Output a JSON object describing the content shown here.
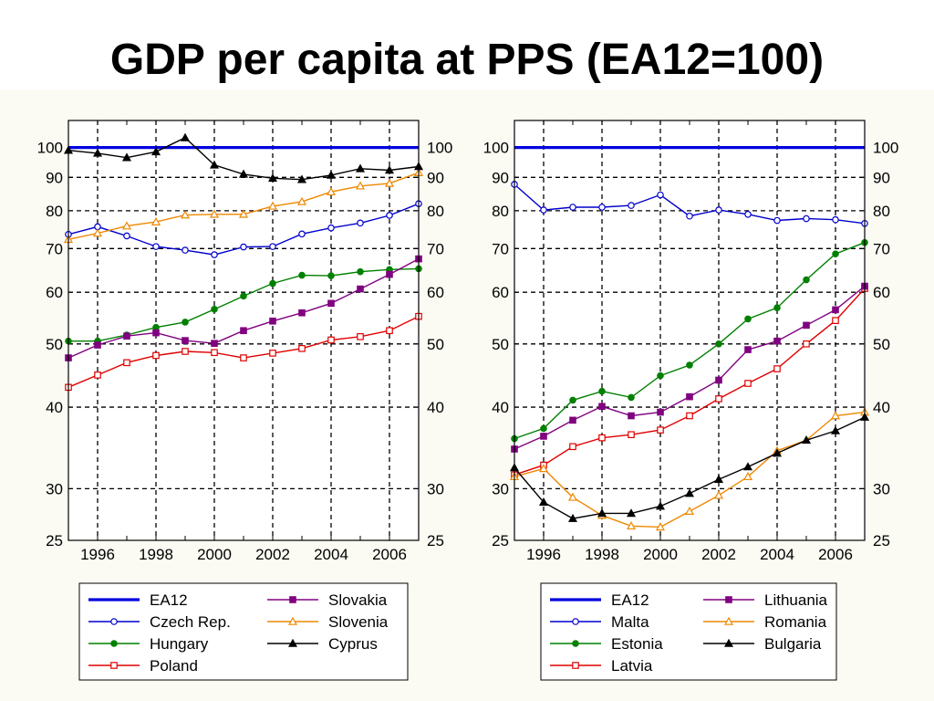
{
  "title": "GDP per capita at PPS (EA12=100)",
  "chart_data": [
    {
      "type": "line",
      "title": "",
      "xlabel": "",
      "ylabel": "",
      "yscale": "log",
      "xlim": [
        1995,
        2007
      ],
      "ylim": [
        25,
        110
      ],
      "x": [
        1995,
        1996,
        1997,
        1998,
        1999,
        2000,
        2001,
        2002,
        2003,
        2004,
        2005,
        2006,
        2007
      ],
      "x_ticks": [
        "1996",
        "1998",
        "2000",
        "2002",
        "2004",
        "2006"
      ],
      "y_ticks": [
        "25",
        "30",
        "40",
        "50",
        "60",
        "70",
        "80",
        "90",
        "100"
      ],
      "grid": true,
      "legend_position": "below",
      "series": [
        {
          "name": "EA12",
          "color": "#0000e0",
          "marker": "none",
          "values": [
            100,
            100,
            100,
            100,
            100,
            100,
            100,
            100,
            100,
            100,
            100,
            100,
            100
          ]
        },
        {
          "name": "Czech Rep.",
          "color": "#0000cc",
          "marker": "circle-open",
          "values": [
            73.6,
            75.6,
            73.2,
            70.5,
            69.6,
            68.5,
            70.4,
            70.5,
            73.7,
            75.3,
            76.6,
            78.7,
            82
          ]
        },
        {
          "name": "Hungary",
          "color": "#008000",
          "marker": "circle-filled",
          "values": [
            50.5,
            50.5,
            51.6,
            53,
            54,
            56.5,
            59.2,
            61.9,
            63.7,
            63.6,
            64.5,
            65,
            65.2
          ]
        },
        {
          "name": "Poland",
          "color": "#e00000",
          "marker": "square-open",
          "values": [
            42.9,
            44.8,
            46.8,
            48,
            48.7,
            48.5,
            47.6,
            48.4,
            49.2,
            50.7,
            51.3,
            52.4,
            55.1
          ]
        },
        {
          "name": "Slovakia",
          "color": "#800080",
          "marker": "square-filled",
          "values": [
            47.6,
            49.8,
            51.4,
            52,
            50.6,
            50.1,
            52.4,
            54.2,
            55.8,
            57.7,
            60.7,
            63.9,
            67.5
          ]
        },
        {
          "name": "Slovenia",
          "color": "#ee8800",
          "marker": "triangle-open",
          "values": [
            72.3,
            73.9,
            75.8,
            76.9,
            78.8,
            79,
            79,
            81.3,
            82.6,
            85.5,
            87.3,
            88.1,
            91.5
          ]
        },
        {
          "name": "Cyprus",
          "color": "#000000",
          "marker": "triangle-filled",
          "values": [
            99,
            98,
            96.5,
            98.5,
            103.5,
            94,
            91,
            89.7,
            89.3,
            90.7,
            92.8,
            92.3,
            93.5
          ]
        }
      ]
    },
    {
      "type": "line",
      "title": "",
      "xlabel": "",
      "ylabel": "",
      "yscale": "log",
      "xlim": [
        1995,
        2007
      ],
      "ylim": [
        25,
        110
      ],
      "x": [
        1995,
        1996,
        1997,
        1998,
        1999,
        2000,
        2001,
        2002,
        2003,
        2004,
        2005,
        2006,
        2007
      ],
      "x_ticks": [
        "1996",
        "1998",
        "2000",
        "2002",
        "2004",
        "2006"
      ],
      "y_ticks": [
        "25",
        "30",
        "40",
        "50",
        "60",
        "70",
        "80",
        "90",
        "100"
      ],
      "grid": true,
      "legend_position": "below",
      "series": [
        {
          "name": "EA12",
          "color": "#0000e0",
          "marker": "none",
          "values": [
            100,
            100,
            100,
            100,
            100,
            100,
            100,
            100,
            100,
            100,
            100,
            100,
            100
          ]
        },
        {
          "name": "Malta",
          "color": "#0000cc",
          "marker": "circle-open",
          "values": [
            87.8,
            80.2,
            81,
            81,
            81.5,
            84.6,
            78.5,
            80.2,
            79,
            77.3,
            77.8,
            77.5,
            76.5
          ]
        },
        {
          "name": "Estonia",
          "color": "#008000",
          "marker": "circle-filled",
          "values": [
            35.8,
            37.1,
            41,
            42.3,
            41.4,
            44.7,
            46.4,
            50,
            54.6,
            56.8,
            62.7,
            68.7,
            71.5
          ]
        },
        {
          "name": "Latvia",
          "color": "#e00000",
          "marker": "square-open",
          "values": [
            31.5,
            32.6,
            34.8,
            35.9,
            36.3,
            36.9,
            38.8,
            41.2,
            43.5,
            45.8,
            50,
            54.3,
            60.8
          ]
        },
        {
          "name": "Lithuania",
          "color": "#800080",
          "marker": "square-filled",
          "values": [
            34.5,
            36.1,
            38.2,
            40.1,
            38.8,
            39.3,
            41.5,
            44,
            49,
            50.5,
            53.4,
            56.4,
            61.3
          ]
        },
        {
          "name": "Romania",
          "color": "#ee8800",
          "marker": "triangle-open",
          "values": [
            31.3,
            32.2,
            29.1,
            27.3,
            26.3,
            26.2,
            27.7,
            29.3,
            31.3,
            34.3,
            35.6,
            38.8,
            39.3
          ]
        },
        {
          "name": "Bulgaria",
          "color": "#000000",
          "marker": "triangle-filled",
          "values": [
            32.3,
            28.6,
            27,
            27.5,
            27.5,
            28.2,
            29.5,
            31,
            32.4,
            34,
            35.6,
            36.8,
            38.6
          ]
        }
      ]
    }
  ]
}
